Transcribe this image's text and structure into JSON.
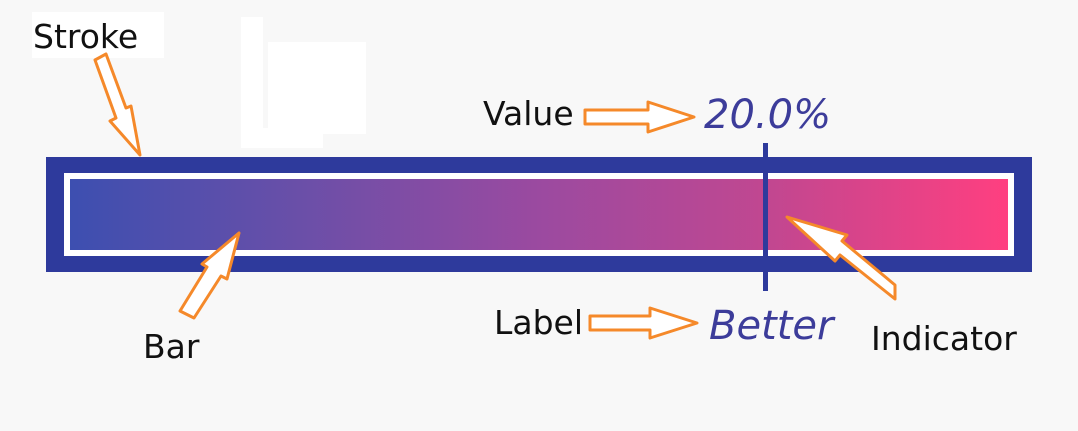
{
  "callouts": {
    "stroke": "Stroke",
    "value": "Value",
    "bar": "Bar",
    "label": "Label",
    "indicator": "Indicator"
  },
  "gauge": {
    "value_text": "20.0%",
    "label_text": "Better",
    "indicator_position": 0.758
  },
  "colors": {
    "frame": "#2e3a9c",
    "gradient_start": "#3d4fb0",
    "gradient_end": "#ff3f80",
    "arrow_stroke": "#f5892a",
    "arrow_fill": "#ffffff",
    "metric_text": "#3c3c9a"
  }
}
